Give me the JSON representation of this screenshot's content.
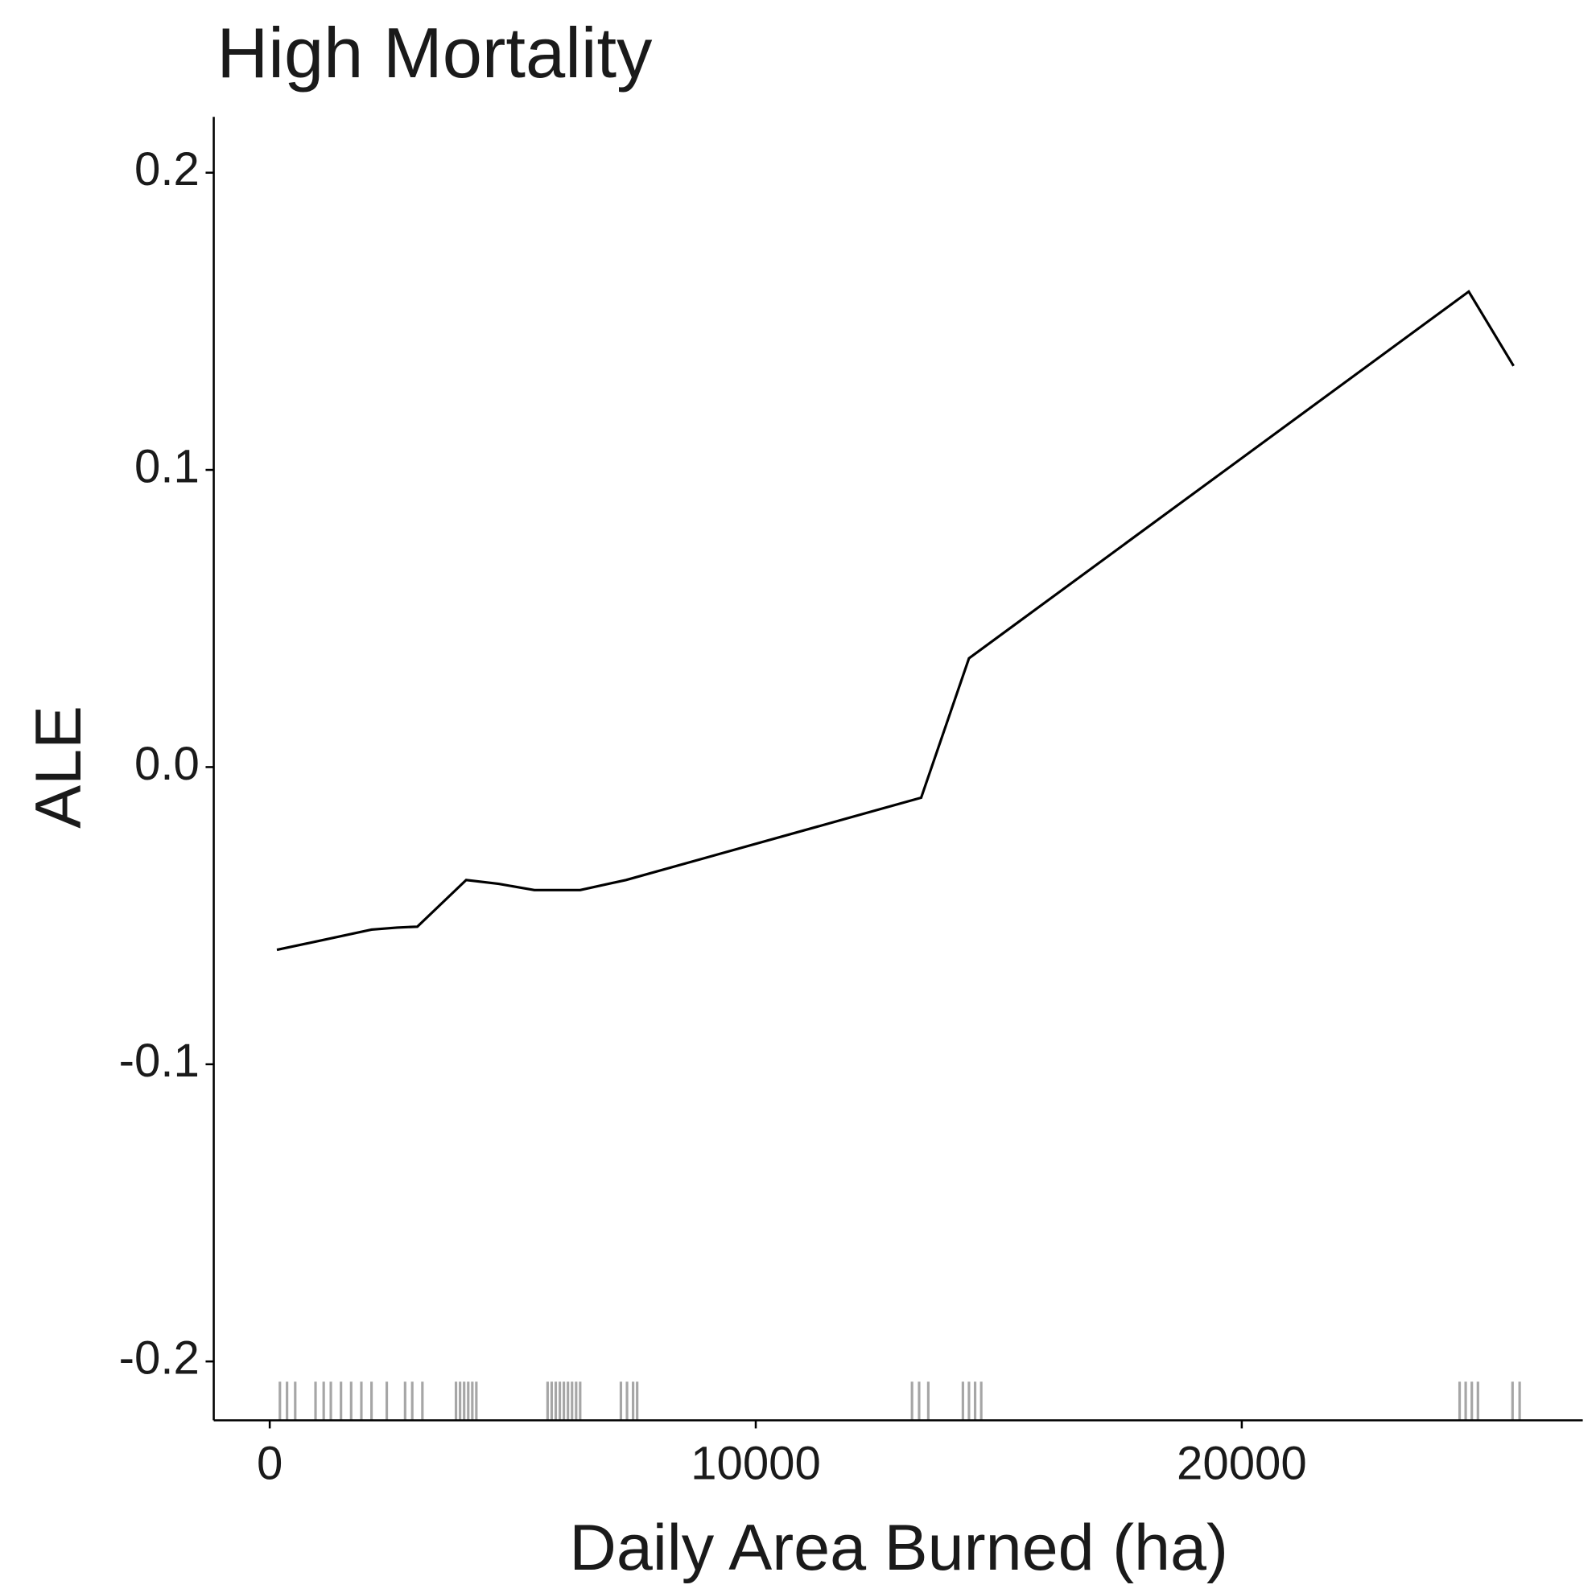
{
  "chart_data": {
    "type": "line",
    "title": "High Mortality",
    "x_label": "Daily Area Burned (ha)",
    "y_label": "ALE",
    "x": [
      147,
      2094,
      2618,
      3037,
      4042,
      4712,
      5445,
      6387,
      7330,
      13403,
      14387,
      24670,
      25592
    ],
    "series": [
      {
        "color": "#000000",
        "values": [
          -0.0615,
          -0.0547,
          -0.054,
          -0.0537,
          -0.038,
          -0.0393,
          -0.0414,
          -0.0414,
          -0.038,
          -0.0103,
          0.0366,
          0.16,
          0.135
        ]
      }
    ],
    "rug": [
      209,
      356,
      524,
      942,
      1110,
      1257,
      1466,
      1675,
      1885,
      2094,
      2408,
      2785,
      2932,
      3141,
      3832,
      3916,
      4000,
      4084,
      4168,
      4251,
      5717,
      5801,
      5885,
      5969,
      6052,
      6136,
      6220,
      6304,
      6387,
      7225,
      7351,
      7476,
      7560,
      13215,
      13361,
      13550,
      14262,
      14387,
      14513,
      14639,
      24482,
      24607,
      24733,
      24859,
      25571,
      25717
    ],
    "xlim": [
      -1152,
      27016
    ],
    "ylim": [
      -0.2198,
      0.2188
    ],
    "xticks": [
      0,
      10000,
      20000
    ],
    "yticks": [
      -0.2,
      -0.1,
      {
        "value": 0,
        "label": "0.0"
      },
      0.1,
      0.2
    ],
    "grid": false
  }
}
